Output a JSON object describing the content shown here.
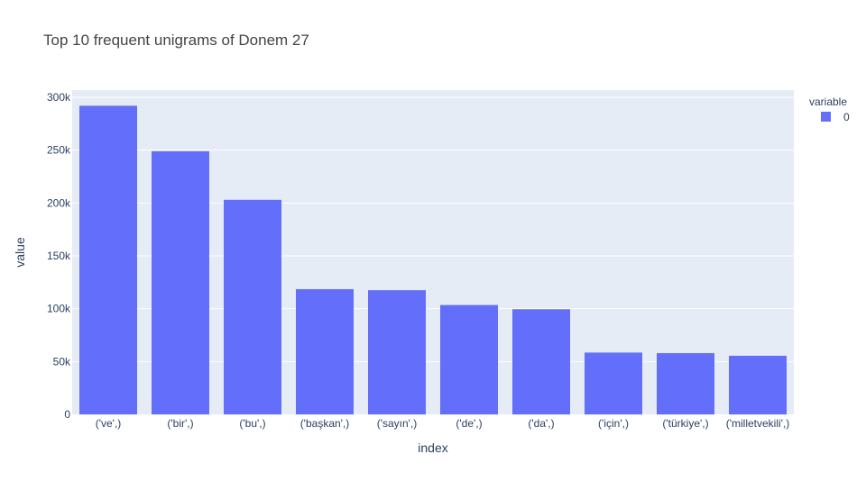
{
  "chart_data": {
    "type": "bar",
    "title": "Top 10 frequent unigrams of Donem 27",
    "xlabel": "index",
    "ylabel": "value",
    "categories": [
      "('ve',)",
      "('bir',)",
      "('bu',)",
      "('başkan',)",
      "('sayın',)",
      "('de',)",
      "('da',)",
      "('için',)",
      "('türkiye',)",
      "('milletvekili',)"
    ],
    "series": [
      {
        "name": "0",
        "values": [
          292000,
          249000,
          203000,
          118500,
          117500,
          103500,
          99500,
          58500,
          58000,
          55500
        ]
      }
    ],
    "ylim": [
      0,
      300000
    ],
    "yticks": [
      0,
      50000,
      100000,
      150000,
      200000,
      250000,
      300000
    ],
    "ytick_labels": [
      "0",
      "50k",
      "100k",
      "150k",
      "200k",
      "250k",
      "300k"
    ],
    "legend": {
      "title": "variable",
      "placement": "top-right"
    },
    "grid": true
  },
  "colors": {
    "bar": "#636efa",
    "plot_bg": "#e5ecf6",
    "grid": "#ffffff",
    "text": "#2a3f5f",
    "title_text": "#444444"
  }
}
